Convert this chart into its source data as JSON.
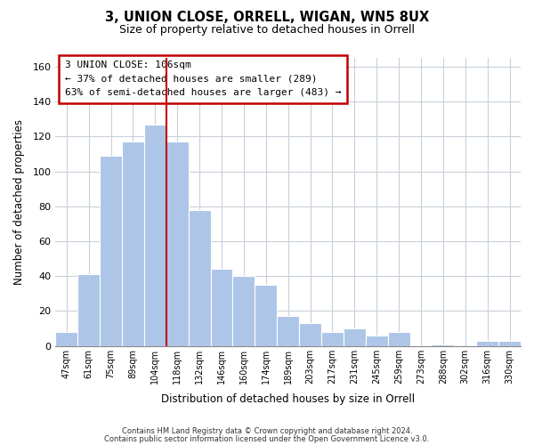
{
  "title": "3, UNION CLOSE, ORRELL, WIGAN, WN5 8UX",
  "subtitle": "Size of property relative to detached houses in Orrell",
  "xlabel": "Distribution of detached houses by size in Orrell",
  "ylabel": "Number of detached properties",
  "bar_labels": [
    "47sqm",
    "61sqm",
    "75sqm",
    "89sqm",
    "104sqm",
    "118sqm",
    "132sqm",
    "146sqm",
    "160sqm",
    "174sqm",
    "189sqm",
    "203sqm",
    "217sqm",
    "231sqm",
    "245sqm",
    "259sqm",
    "273sqm",
    "288sqm",
    "302sqm",
    "316sqm",
    "330sqm"
  ],
  "bar_values": [
    8,
    41,
    109,
    117,
    127,
    117,
    78,
    44,
    40,
    35,
    17,
    13,
    8,
    10,
    6,
    8,
    0,
    1,
    0,
    3,
    3
  ],
  "bar_color": "#adc6e8",
  "highlight_bar_index": 4,
  "highlight_color": "#c00000",
  "ylim": [
    0,
    165
  ],
  "yticks": [
    0,
    20,
    40,
    60,
    80,
    100,
    120,
    140,
    160
  ],
  "annotation_title": "3 UNION CLOSE: 106sqm",
  "annotation_line1": "← 37% of detached houses are smaller (289)",
  "annotation_line2": "63% of semi-detached houses are larger (483) →",
  "footer1": "Contains HM Land Registry data © Crown copyright and database right 2024.",
  "footer2": "Contains public sector information licensed under the Open Government Licence v3.0.",
  "bg_color": "#ffffff",
  "grid_color": "#c8d0d8"
}
